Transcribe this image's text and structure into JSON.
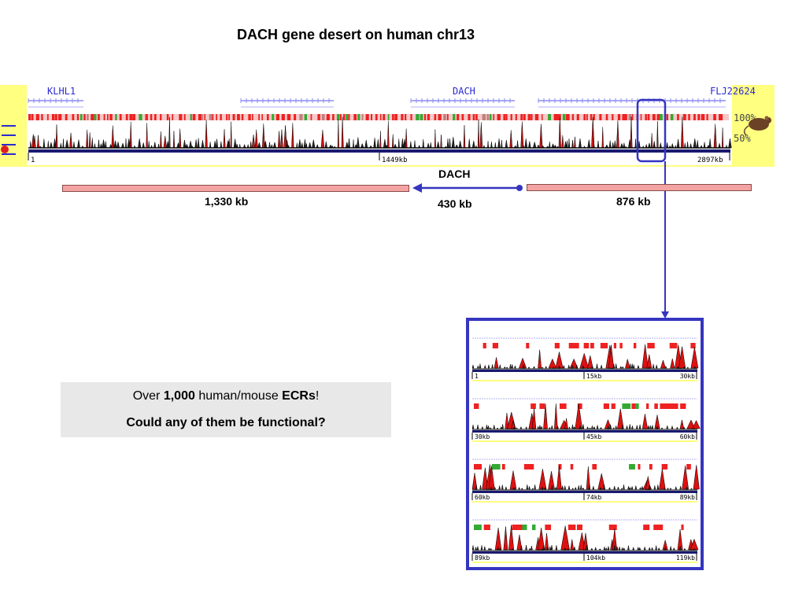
{
  "title": "DACH gene desert on human chr13",
  "browser": {
    "genes": {
      "left": "KLHL1",
      "center": "DACH",
      "right": "FLJ22624"
    },
    "ticks": {
      "start": "1",
      "mid": "1449kb",
      "end": "2897kb"
    },
    "percent_top": "100%",
    "percent_bottom": "50%",
    "organism_icon": "mouse-icon"
  },
  "segments": {
    "gene_label": "DACH",
    "left_desert": "1,330 kb",
    "gene_length": "430 kb",
    "right_desert": "876 kb"
  },
  "ecr_note": {
    "prefix": "Over ",
    "count": "1,000",
    "middle": " human/mouse ",
    "term": "ECRs",
    "suffix": "!",
    "question": "Could any of them be functional?"
  },
  "zoom_panels": [
    {
      "start": "1",
      "mid": "15kb",
      "end": "30kb"
    },
    {
      "start": "30kb",
      "mid": "45kb",
      "end": "60kb"
    },
    {
      "start": "60kb",
      "mid": "74kb",
      "end": "89kb"
    },
    {
      "start": "89kb",
      "mid": "104kb",
      "end": "119kb"
    }
  ],
  "colors": {
    "accent": "#3535c0",
    "conserved": "#ee2222",
    "desert": "#f4a3a3",
    "track_bg": "#ffff80",
    "gene_text": "#2a2ad0"
  }
}
